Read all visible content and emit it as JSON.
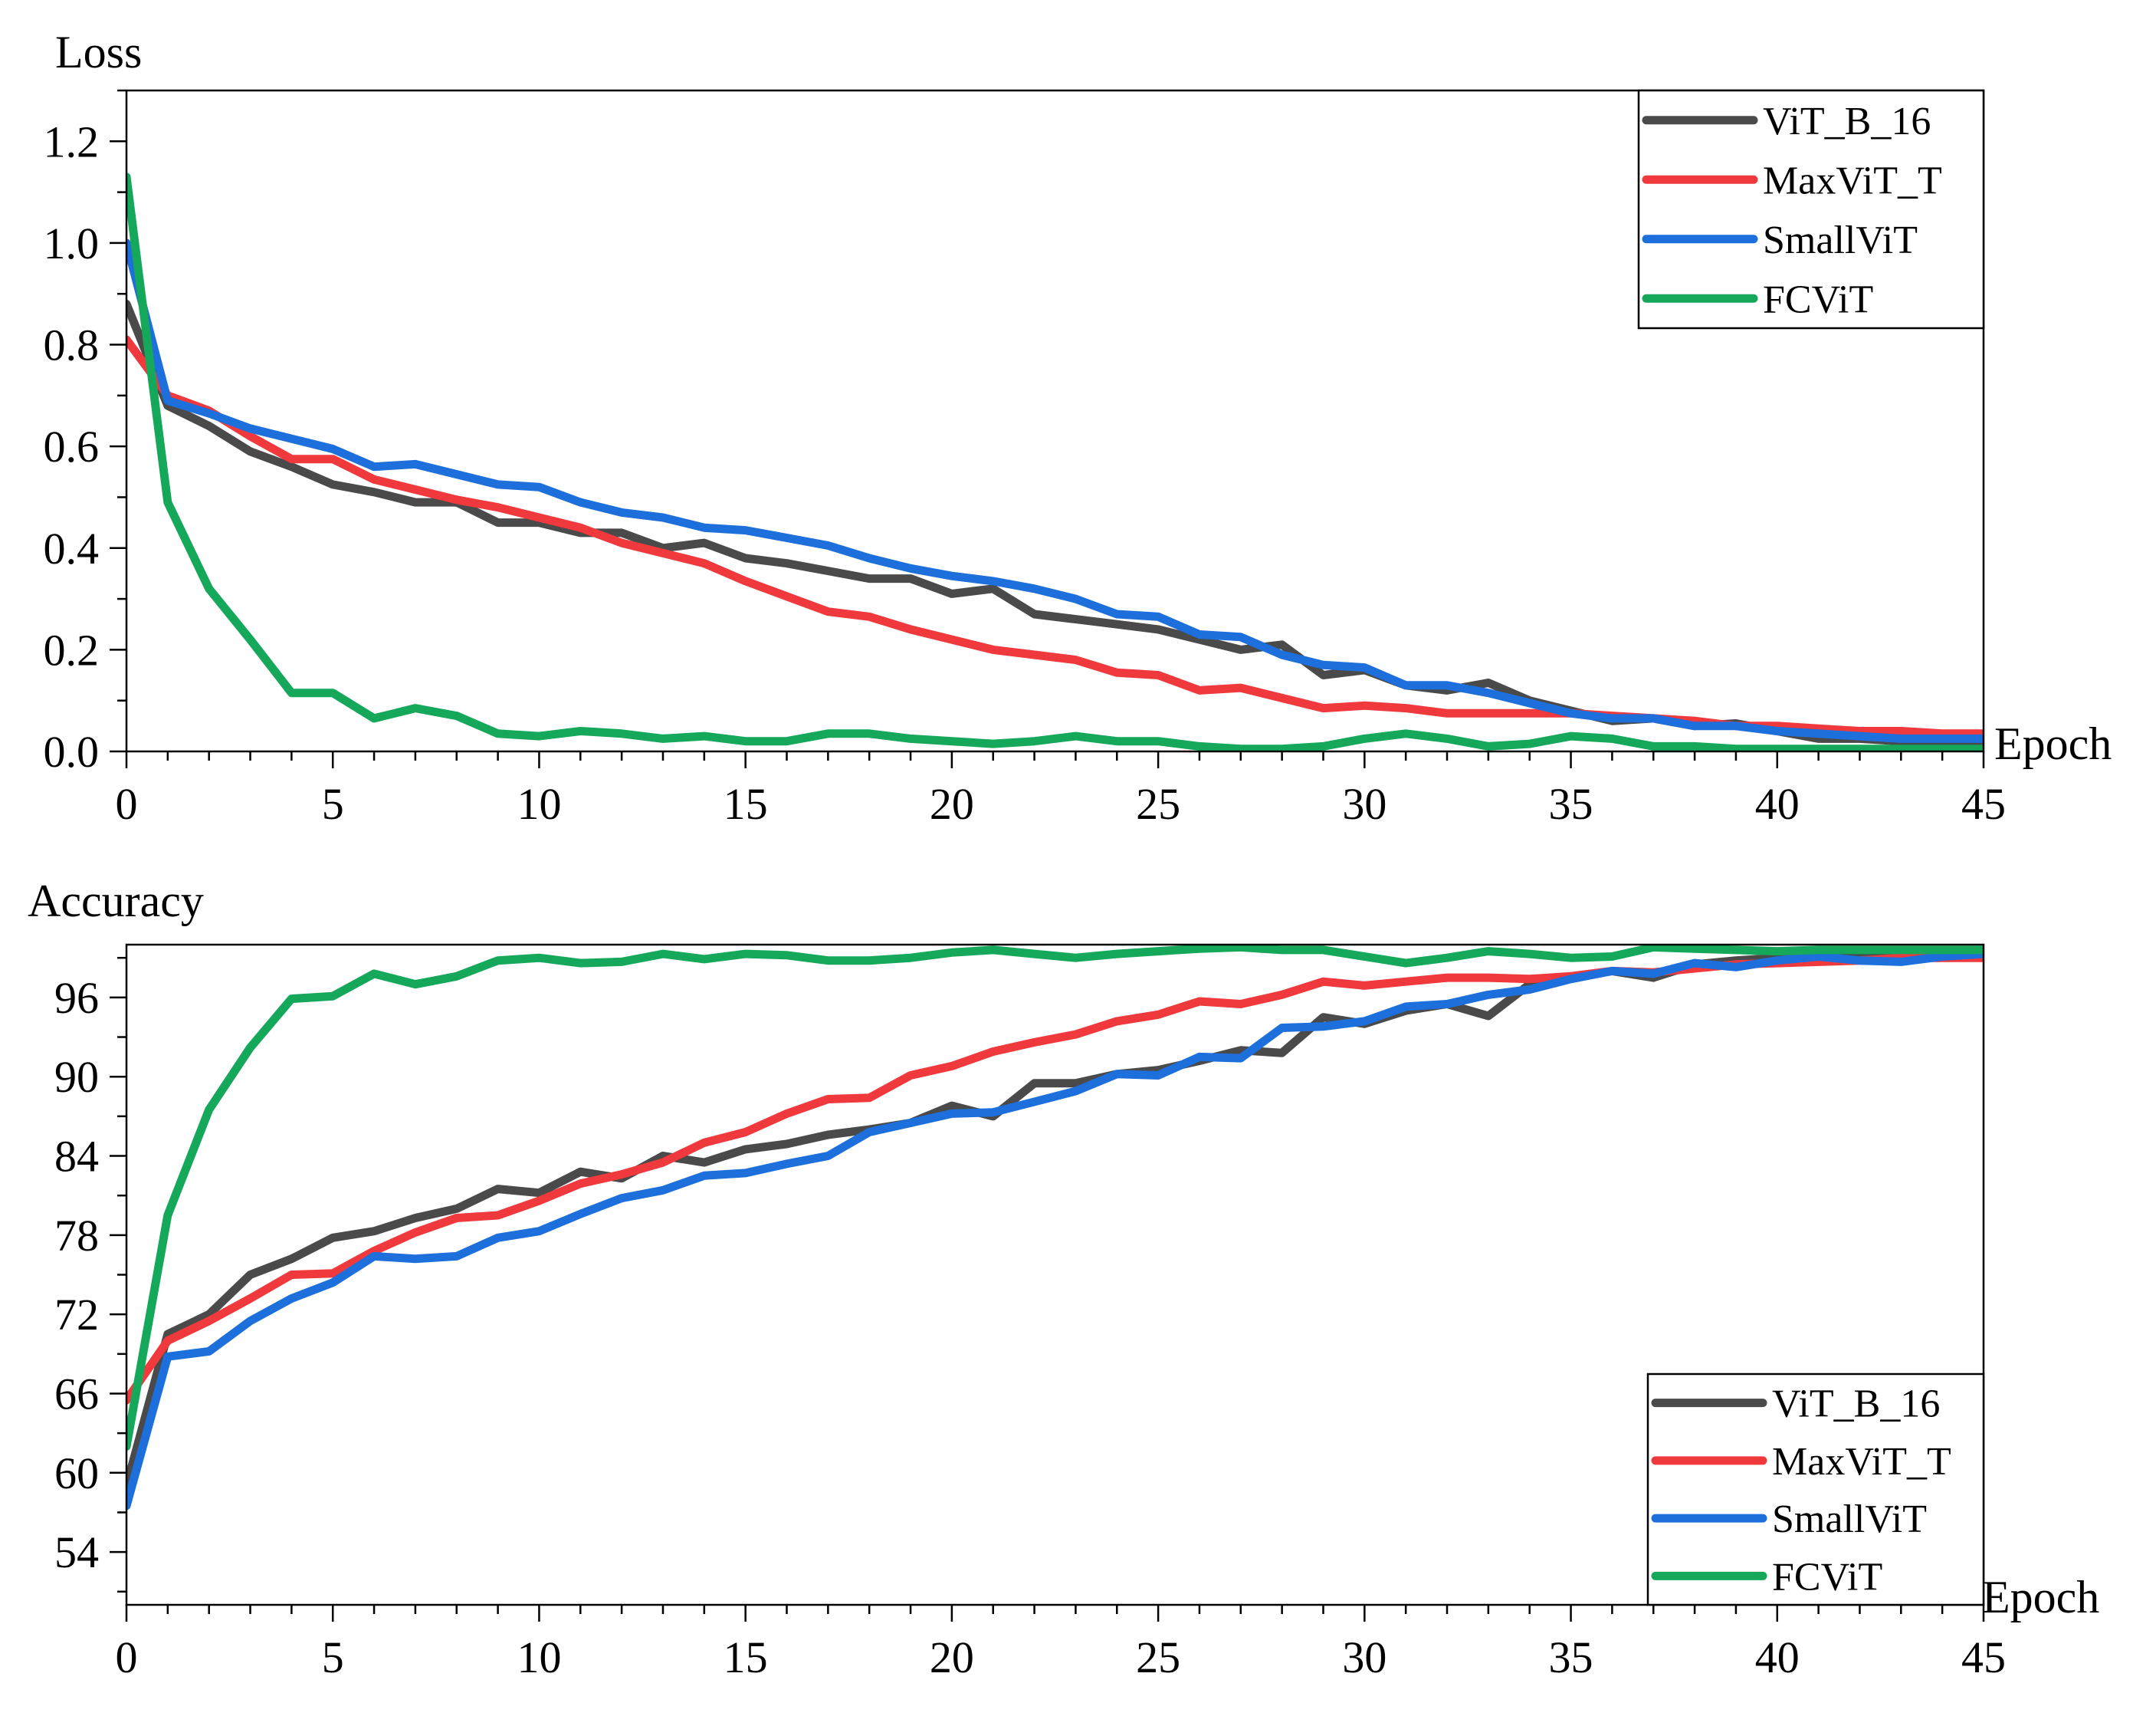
{
  "colors": {
    "ViT_B_16": "#4a4a4a",
    "MaxViT_T": "#f0393c",
    "SmallViT": "#1d6fdc",
    "FCViT": "#15a85a"
  },
  "chart_data": [
    {
      "type": "line",
      "ylabel": "Loss",
      "xlabel": "Epoch",
      "xlim": [
        0,
        45
      ],
      "ylim": [
        0,
        1.3
      ],
      "xticks": [
        0,
        5,
        10,
        15,
        20,
        25,
        30,
        35,
        40,
        45
      ],
      "xtick_labels": [
        "0",
        "5",
        "10",
        "15",
        "20",
        "25",
        "30",
        "35",
        "40",
        "45"
      ],
      "yticks": [
        0,
        0.2,
        0.4,
        0.6,
        0.8,
        1.0,
        1.2
      ],
      "ytick_labels": [
        "0.0",
        "0.2",
        "0.4",
        "0.6",
        "0.8",
        "1.0",
        "1.2"
      ],
      "legend_position": "top-right",
      "series": [
        {
          "name": "ViT_B_16",
          "values": [
            0.88,
            0.68,
            0.64,
            0.59,
            0.56,
            0.525,
            0.51,
            0.49,
            0.49,
            0.45,
            0.45,
            0.43,
            0.43,
            0.4,
            0.41,
            0.38,
            0.37,
            0.355,
            0.34,
            0.34,
            0.31,
            0.32,
            0.27,
            0.26,
            0.25,
            0.24,
            0.22,
            0.2,
            0.21,
            0.15,
            0.16,
            0.13,
            0.12,
            0.135,
            0.1,
            0.08,
            0.06,
            0.065,
            0.05,
            0.055,
            0.04,
            0.025,
            0.025,
            0.02,
            0.02,
            0.02
          ]
        },
        {
          "name": "MaxViT_T",
          "values": [
            0.81,
            0.7,
            0.67,
            0.62,
            0.575,
            0.575,
            0.535,
            0.515,
            0.495,
            0.48,
            0.46,
            0.44,
            0.41,
            0.39,
            0.37,
            0.335,
            0.305,
            0.275,
            0.265,
            0.24,
            0.22,
            0.2,
            0.19,
            0.18,
            0.155,
            0.15,
            0.12,
            0.125,
            0.105,
            0.085,
            0.09,
            0.085,
            0.075,
            0.075,
            0.075,
            0.075,
            0.07,
            0.065,
            0.06,
            0.05,
            0.05,
            0.045,
            0.04,
            0.04,
            0.035,
            0.035
          ]
        },
        {
          "name": "SmallViT",
          "values": [
            1.0,
            0.69,
            0.665,
            0.635,
            0.615,
            0.595,
            0.56,
            0.565,
            0.545,
            0.525,
            0.52,
            0.49,
            0.47,
            0.46,
            0.44,
            0.435,
            0.42,
            0.405,
            0.38,
            0.36,
            0.345,
            0.335,
            0.32,
            0.3,
            0.27,
            0.265,
            0.23,
            0.225,
            0.19,
            0.17,
            0.165,
            0.13,
            0.13,
            0.115,
            0.095,
            0.075,
            0.065,
            0.065,
            0.05,
            0.05,
            0.04,
            0.035,
            0.03,
            0.025,
            0.025,
            0.025
          ]
        },
        {
          "name": "FCViT",
          "values": [
            1.13,
            0.49,
            0.32,
            0.22,
            0.115,
            0.115,
            0.065,
            0.085,
            0.07,
            0.035,
            0.03,
            0.04,
            0.035,
            0.025,
            0.03,
            0.02,
            0.02,
            0.035,
            0.035,
            0.025,
            0.02,
            0.015,
            0.02,
            0.03,
            0.02,
            0.02,
            0.01,
            0.005,
            0.005,
            0.01,
            0.025,
            0.035,
            0.025,
            0.01,
            0.015,
            0.03,
            0.025,
            0.01,
            0.01,
            0.005,
            0.005,
            0.005,
            0.005,
            0.005,
            0.005,
            0.005
          ]
        }
      ]
    },
    {
      "type": "line",
      "ylabel": "Accuracy",
      "xlabel": "Epoch",
      "xlim": [
        0,
        45
      ],
      "ylim": [
        50,
        100
      ],
      "xticks": [
        0,
        5,
        10,
        15,
        20,
        25,
        30,
        35,
        40,
        45
      ],
      "xtick_labels": [
        "0",
        "5",
        "10",
        "15",
        "20",
        "25",
        "30",
        "35",
        "40",
        "45"
      ],
      "yticks": [
        54,
        60,
        66,
        72,
        78,
        84,
        90,
        96
      ],
      "ytick_labels": [
        "54",
        "60",
        "66",
        "72",
        "78",
        "84",
        "90",
        "96"
      ],
      "legend_position": "bottom-right",
      "series": [
        {
          "name": "ViT_B_16",
          "values": [
            59,
            70.5,
            72,
            75,
            76.2,
            77.8,
            78.3,
            79.3,
            80,
            81.5,
            81.2,
            82.8,
            82.3,
            84,
            83.5,
            84.5,
            84.9,
            85.6,
            86,
            86.5,
            87.8,
            87,
            89.5,
            89.5,
            90.2,
            90.5,
            91.2,
            92,
            91.8,
            94.5,
            94,
            95,
            95.5,
            94.6,
            97,
            97.6,
            98,
            97.5,
            98.5,
            98.8,
            99,
            99.2,
            99.3,
            99.4,
            99.5,
            99.5
          ]
        },
        {
          "name": "MaxViT_T",
          "values": [
            65.5,
            70,
            71.5,
            73.2,
            75,
            75.1,
            76.8,
            78.2,
            79.3,
            79.5,
            80.6,
            81.9,
            82.6,
            83.5,
            85,
            85.8,
            87.2,
            88.3,
            88.4,
            90.1,
            90.8,
            91.9,
            92.6,
            93.2,
            94.2,
            94.7,
            95.7,
            95.5,
            96.2,
            97.2,
            96.9,
            97.2,
            97.5,
            97.5,
            97.4,
            97.6,
            98,
            97.9,
            98.2,
            98.5,
            98.6,
            98.7,
            98.8,
            99,
            99,
            99
          ]
        },
        {
          "name": "SmallViT",
          "values": [
            57.5,
            68.8,
            69.2,
            71.5,
            73.2,
            74.4,
            76.4,
            76.2,
            76.4,
            77.8,
            78.3,
            79.6,
            80.8,
            81.4,
            82.5,
            82.7,
            83.4,
            84,
            85.8,
            86.5,
            87.2,
            87.3,
            88.1,
            88.9,
            90.2,
            90.1,
            91.5,
            91.4,
            93.7,
            93.8,
            94.2,
            95.3,
            95.5,
            96.2,
            96.6,
            97.4,
            98,
            97.8,
            98.6,
            98.3,
            98.8,
            99.1,
            98.8,
            98.7,
            99.1,
            99.3
          ]
        },
        {
          "name": "FCViT",
          "values": [
            62,
            79.5,
            87.5,
            92.2,
            95.9,
            96.1,
            97.8,
            97,
            97.6,
            98.8,
            99,
            98.6,
            98.7,
            99.3,
            98.9,
            99.3,
            99.2,
            98.8,
            98.8,
            99,
            99.4,
            99.6,
            99.3,
            99,
            99.3,
            99.5,
            99.7,
            99.8,
            99.6,
            99.6,
            99.1,
            98.6,
            99,
            99.5,
            99.3,
            99,
            99.1,
            99.8,
            99.7,
            99.6,
            99.5,
            99.6,
            99.6,
            99.6,
            99.6,
            99.6
          ]
        }
      ]
    }
  ]
}
